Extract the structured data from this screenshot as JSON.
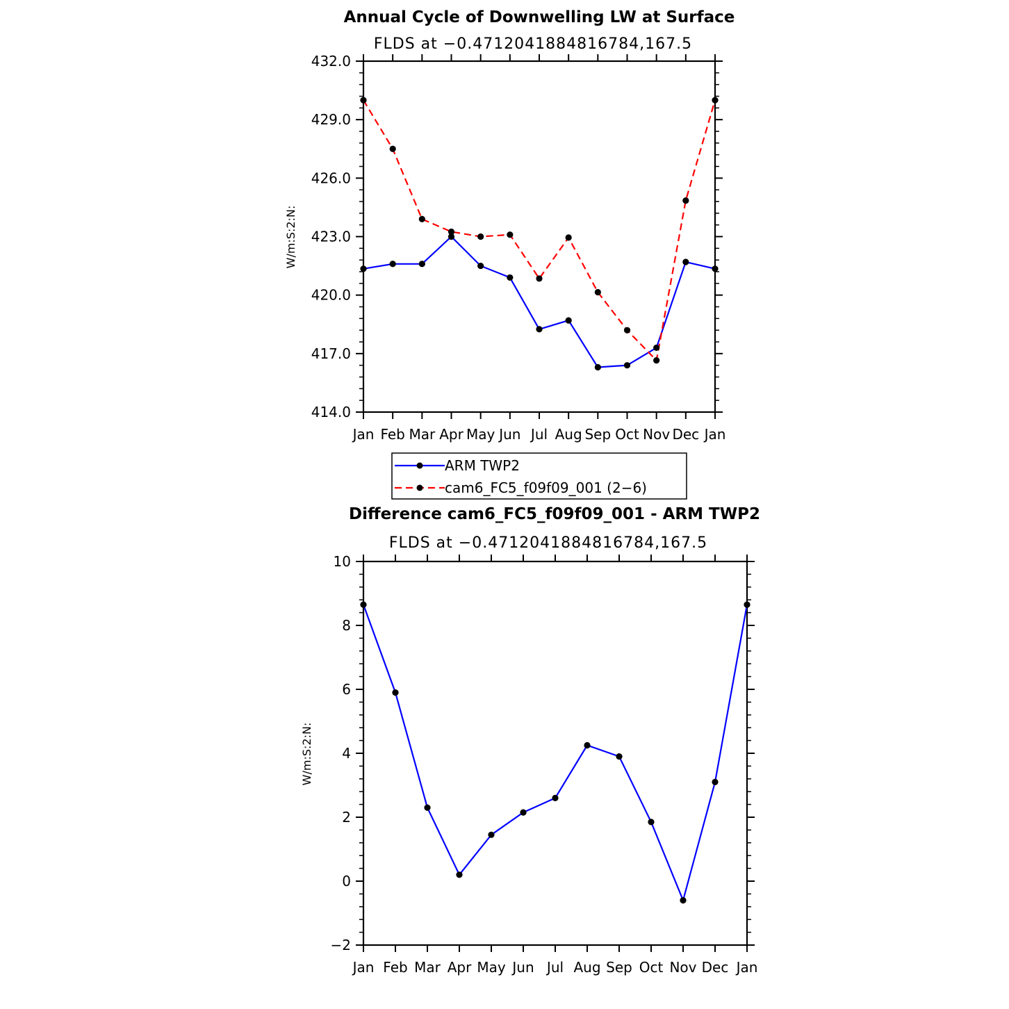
{
  "chart_data": [
    {
      "type": "line",
      "title": "Annual Cycle of Downwelling LW at Surface",
      "subtitle": "FLDS at −0.4712041884816784,167.5",
      "ylabel": "W/m:S:2:N:",
      "xlabel": "",
      "categories": [
        "Jan",
        "Feb",
        "Mar",
        "Apr",
        "May",
        "Jun",
        "Jul",
        "Aug",
        "Sep",
        "Oct",
        "Nov",
        "Dec",
        "Jan"
      ],
      "ylim": [
        414.0,
        432.0
      ],
      "yticks": [
        "414.0",
        "417.0",
        "420.0",
        "423.0",
        "426.0",
        "429.0",
        "432.0"
      ],
      "series": [
        {
          "name": "ARM TWP2",
          "color": "#0000ff",
          "dash": "solid",
          "values": [
            421.35,
            421.6,
            421.6,
            423.0,
            421.5,
            420.9,
            418.25,
            418.7,
            416.3,
            416.4,
            417.3,
            421.7,
            421.35
          ]
        },
        {
          "name": "cam6_FC5_f09f09_001 (2−6)",
          "color": "#ff0000",
          "dash": "dashed",
          "values": [
            430.0,
            427.5,
            423.9,
            423.25,
            423.0,
            423.1,
            420.85,
            422.95,
            420.15,
            418.2,
            416.65,
            424.85,
            430.0
          ]
        }
      ],
      "legend_position": "below"
    },
    {
      "type": "line",
      "title": "Difference cam6_FC5_f09f09_001 - ARM TWP2",
      "subtitle": "FLDS at −0.4712041884816784,167.5",
      "ylabel": "W/m:S:2:N:",
      "xlabel": "",
      "categories": [
        "Jan",
        "Feb",
        "Mar",
        "Apr",
        "May",
        "Jun",
        "Jul",
        "Aug",
        "Sep",
        "Oct",
        "Nov",
        "Dec",
        "Jan"
      ],
      "ylim": [
        -2,
        10
      ],
      "yticks": [
        "−2",
        "0",
        "2",
        "4",
        "6",
        "8",
        "10"
      ],
      "series": [
        {
          "color": "#0000ff",
          "dash": "solid",
          "values": [
            8.65,
            5.9,
            2.3,
            0.2,
            1.45,
            2.15,
            2.6,
            4.25,
            3.9,
            1.85,
            -0.6,
            3.1,
            8.65
          ]
        }
      ]
    }
  ]
}
